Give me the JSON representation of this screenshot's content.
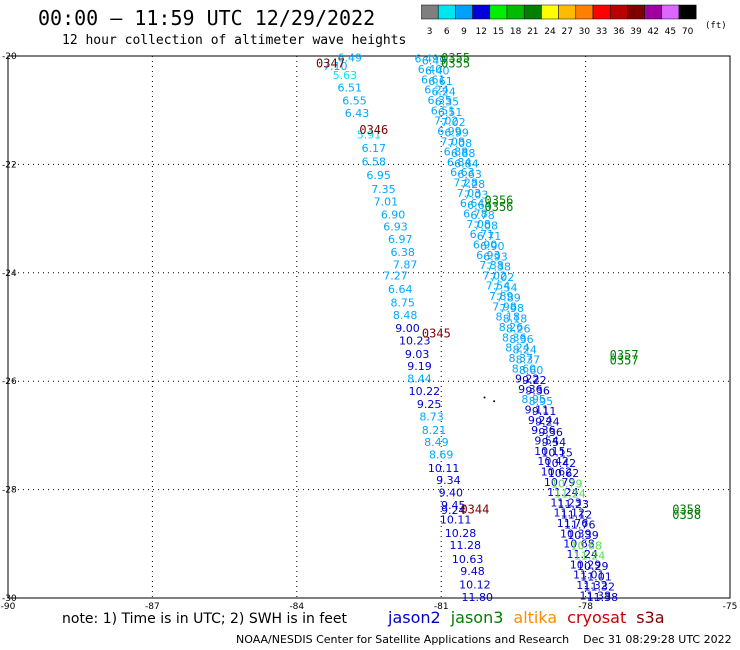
{
  "header": {
    "title": "00:00 — 11:59 UTC 12/29/2022",
    "subtitle": "12 hour collection of altimeter wave heights"
  },
  "color_scale": {
    "bins": [
      {
        "label": "3",
        "color": "#7f7f7f"
      },
      {
        "label": "6",
        "color": "#00e5ee"
      },
      {
        "label": "9",
        "color": "#00a0ff"
      },
      {
        "label": "12",
        "color": "#0000dd"
      },
      {
        "label": "15",
        "color": "#00ee00"
      },
      {
        "label": "18",
        "color": "#00bb00"
      },
      {
        "label": "21",
        "color": "#007f00"
      },
      {
        "label": "24",
        "color": "#ffff00"
      },
      {
        "label": "27",
        "color": "#ffbb00"
      },
      {
        "label": "30",
        "color": "#ff7f00"
      },
      {
        "label": "33",
        "color": "#ff0000"
      },
      {
        "label": "36",
        "color": "#bb0000"
      },
      {
        "label": "39",
        "color": "#7f0000"
      },
      {
        "label": "42",
        "color": "#a000a0"
      },
      {
        "label": "45",
        "color": "#dd66ff"
      },
      {
        "label": "70",
        "color": "#000000"
      }
    ],
    "units": "(ft)"
  },
  "note": "note: 1) Time is in UTC; 2) SWH is in feet",
  "legend": [
    {
      "name": "jason2",
      "color": "#0000cc"
    },
    {
      "name": "jason3",
      "color": "#007f00"
    },
    {
      "name": "altika",
      "color": "#ff8c00"
    },
    {
      "name": "cryosat",
      "color": "#cc0000"
    },
    {
      "name": "s3a",
      "color": "#7f0000"
    }
  ],
  "footer": "NOAA/NESDIS Center for Satellite Applications and Research    Dec 31 08:29:28 UTC 2022",
  "chart_data": {
    "type": "scatter",
    "xlim": [
      -90,
      -75
    ],
    "ylim": [
      -30,
      -20
    ],
    "xticks": [
      -90,
      -87,
      -84,
      -81,
      -78,
      -75
    ],
    "yticks": [
      -20,
      -22,
      -24,
      -26,
      -28,
      -30
    ],
    "grid": true,
    "time_labels": [
      {
        "text": "0347",
        "lon": -83.3,
        "lat": -20.12,
        "color": "#7f0000"
      },
      {
        "text": "0355",
        "lon": -80.7,
        "lat": -20.02,
        "color": "#007f00"
      },
      {
        "text": "0355",
        "lon": -80.7,
        "lat": -20.12,
        "color": "#007f00"
      },
      {
        "text": "0346",
        "lon": -82.4,
        "lat": -21.35,
        "color": "#7f0000"
      },
      {
        "text": "0356",
        "lon": -79.8,
        "lat": -22.65,
        "color": "#007f00"
      },
      {
        "text": "0356",
        "lon": -79.8,
        "lat": -22.77,
        "color": "#007f00"
      },
      {
        "text": "0345",
        "lon": -81.1,
        "lat": -25.1,
        "color": "#7f0000"
      },
      {
        "text": "0357",
        "lon": -77.2,
        "lat": -25.5,
        "color": "#007f00"
      },
      {
        "text": "0357",
        "lon": -77.2,
        "lat": -25.6,
        "color": "#007f00"
      },
      {
        "text": "0344",
        "lon": -80.3,
        "lat": -28.35,
        "color": "#7f0000"
      },
      {
        "text": "0358",
        "lon": -75.9,
        "lat": -28.35,
        "color": "#007f00"
      },
      {
        "text": "0358",
        "lon": -75.9,
        "lat": -28.45,
        "color": "#007f00"
      }
    ],
    "west_track": [
      {
        "lon": -83.2,
        "lat": -20.18,
        "value": "7.10"
      },
      {
        "lon": -82.9,
        "lat": -20.03,
        "value": "6.49"
      },
      {
        "lon": -83.0,
        "lat": -20.35,
        "value": "5.63"
      },
      {
        "lon": -82.9,
        "lat": -20.58,
        "value": "6.51"
      },
      {
        "lon": -82.8,
        "lat": -20.82,
        "value": "6.55"
      },
      {
        "lon": -82.75,
        "lat": -21.05,
        "value": "6.43"
      },
      {
        "lon": -82.5,
        "lat": -21.45,
        "value": "5.91"
      },
      {
        "lon": -82.4,
        "lat": -21.7,
        "value": "6.17"
      },
      {
        "lon": -82.4,
        "lat": -21.95,
        "value": "6.58"
      },
      {
        "lon": -82.3,
        "lat": -22.2,
        "value": "6.95"
      },
      {
        "lon": -82.2,
        "lat": -22.45,
        "value": "7.35"
      },
      {
        "lon": -82.15,
        "lat": -22.68,
        "value": "7.01"
      },
      {
        "lon": -82.0,
        "lat": -22.92,
        "value": "6.90"
      },
      {
        "lon": -81.95,
        "lat": -23.15,
        "value": "6.93"
      },
      {
        "lon": -81.85,
        "lat": -23.38,
        "value": "6.97"
      },
      {
        "lon": -81.8,
        "lat": -23.62,
        "value": "6.38"
      },
      {
        "lon": -81.75,
        "lat": -23.85,
        "value": "7.87"
      },
      {
        "lon": -81.95,
        "lat": -24.05,
        "value": "7.27"
      },
      {
        "lon": -81.85,
        "lat": -24.3,
        "value": "6.64"
      },
      {
        "lon": -81.8,
        "lat": -24.55,
        "value": "8.75"
      },
      {
        "lon": -81.75,
        "lat": -24.78,
        "value": "8.48"
      },
      {
        "lon": -81.7,
        "lat": -25.02,
        "value": "9.00"
      },
      {
        "lon": -81.55,
        "lat": -25.25,
        "value": "10.23"
      },
      {
        "lon": -81.5,
        "lat": -25.5,
        "value": "9.03"
      },
      {
        "lon": -81.45,
        "lat": -25.72,
        "value": "9.19"
      },
      {
        "lon": -81.45,
        "lat": -25.95,
        "value": "8.44"
      },
      {
        "lon": -81.35,
        "lat": -26.18,
        "value": "10.22"
      },
      {
        "lon": -81.25,
        "lat": -26.42,
        "value": "9.25"
      },
      {
        "lon": -81.2,
        "lat": -26.65,
        "value": "8.73"
      },
      {
        "lon": -81.15,
        "lat": -26.9,
        "value": "8.21"
      },
      {
        "lon": -81.1,
        "lat": -27.12,
        "value": "8.49"
      },
      {
        "lon": -81.0,
        "lat": -27.35,
        "value": "8.69"
      },
      {
        "lon": -80.95,
        "lat": -27.6,
        "value": "10.11"
      },
      {
        "lon": -80.85,
        "lat": -27.82,
        "value": "9.34"
      },
      {
        "lon": -80.8,
        "lat": -28.05,
        "value": "9.40"
      },
      {
        "lon": -80.75,
        "lat": -28.28,
        "value": "9.45"
      },
      {
        "lon": -80.75,
        "lat": -28.38,
        "value": "9.24"
      },
      {
        "lon": -80.7,
        "lat": -28.55,
        "value": "10.11"
      },
      {
        "lon": -80.6,
        "lat": -28.8,
        "value": "10.28"
      },
      {
        "lon": -80.5,
        "lat": -29.02,
        "value": "11.28"
      },
      {
        "lon": -80.45,
        "lat": -29.28,
        "value": "10.63"
      },
      {
        "lon": -80.35,
        "lat": -29.5,
        "value": "9.48"
      },
      {
        "lon": -80.3,
        "lat": -29.75,
        "value": "10.12"
      },
      {
        "lon": -80.25,
        "lat": -29.98,
        "value": "11.80"
      }
    ],
    "east_track_values": [
      "6.49",
      "6.40",
      "6.61",
      "6.24",
      "6.35",
      "6.51",
      "7.02",
      "6.99",
      "7.08",
      "6.88",
      "6.84",
      "6.63",
      "7.28",
      "7.03",
      "6.64",
      "6.78",
      "7.08",
      "6.71",
      "6.90",
      "6.93",
      "7.38",
      "7.02",
      "7.54",
      "7.89",
      "7.98",
      "8.18",
      "8.26",
      "8.36",
      "8.24",
      "8.37",
      "8.60",
      "9.22",
      "9.36",
      "8.95",
      "9.11",
      "9.24",
      "9.36",
      "9.54",
      "10.15",
      "10.42",
      "10.62",
      "10.79",
      "11.24",
      "11.23",
      "11.12",
      "11.76",
      "10.39",
      "10.68",
      "11.24",
      "10.29",
      "11.01",
      "11.32",
      "11.38"
    ],
    "east_track_start": {
      "lon": -81.3,
      "lat": -20.05
    },
    "east_track_end": {
      "lon": -77.8,
      "lat": -29.95
    }
  }
}
